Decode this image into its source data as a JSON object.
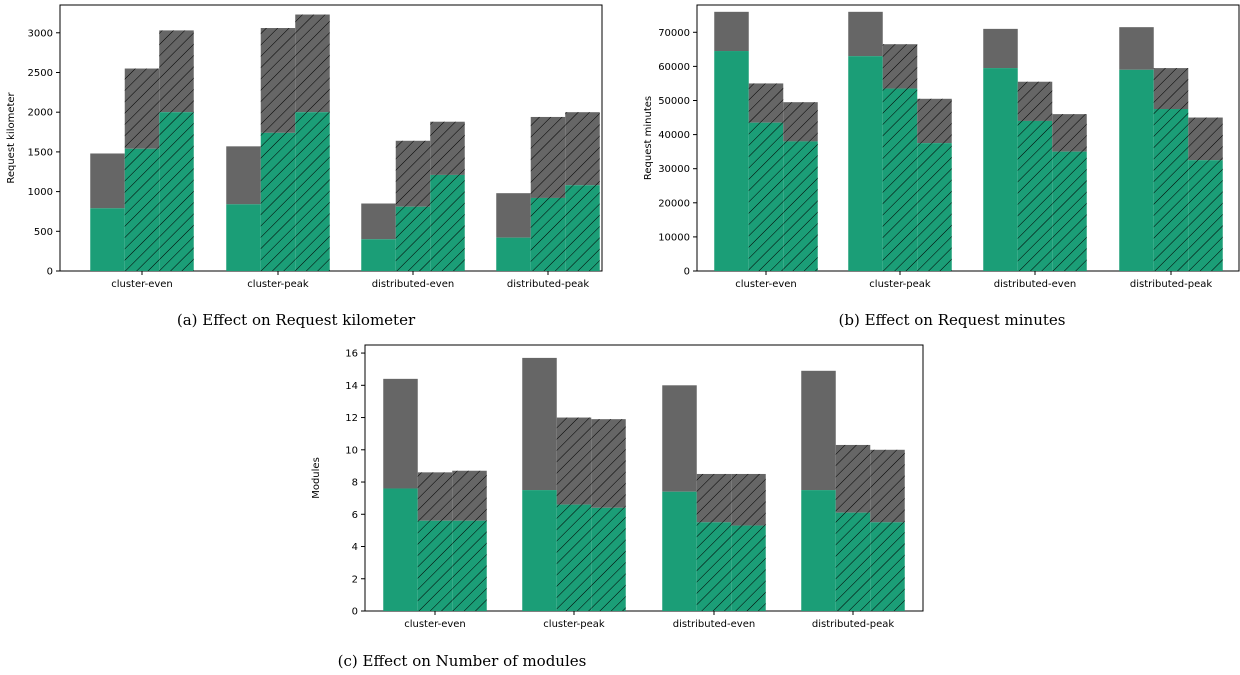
{
  "colors": {
    "green": "#1b9e77",
    "gray": "#666666",
    "axis": "#000000"
  },
  "chart_data": [
    {
      "type": "bar",
      "stacked": true,
      "caption": "(a) Effect on Request kilometer",
      "ylabel": "Request kilometer",
      "ylim": [
        0,
        3350
      ],
      "yticks": [
        0,
        500,
        1000,
        1500,
        2000,
        2500,
        3000
      ],
      "categories": [
        "cluster-even",
        "cluster-peak",
        "distributed-even",
        "distributed-peak"
      ],
      "bars_per_category": 3,
      "hatch": [
        "none",
        "diagonal",
        "diagonal"
      ],
      "series": [
        {
          "values": [
            [
              790,
              1540,
              2000
            ],
            [
              840,
              1740,
              2000
            ],
            [
              400,
              810,
              1210
            ],
            [
              420,
              920,
              1080
            ]
          ]
        },
        {
          "values": [
            [
              1480,
              2550,
              3030
            ],
            [
              1570,
              3060,
              3230
            ],
            [
              850,
              1640,
              1880
            ],
            [
              980,
              1940,
              2000
            ]
          ]
        }
      ]
    },
    {
      "type": "bar",
      "stacked": true,
      "caption": "(b) Effect on Request minutes",
      "ylabel": "Request minutes",
      "ylim": [
        0,
        78000
      ],
      "yticks": [
        0,
        10000,
        20000,
        30000,
        40000,
        50000,
        60000,
        70000
      ],
      "categories": [
        "cluster-even",
        "cluster-peak",
        "distributed-even",
        "distributed-peak"
      ],
      "bars_per_category": 3,
      "hatch": [
        "none",
        "diagonal",
        "diagonal"
      ],
      "series": [
        {
          "values": [
            [
              64500,
              43500,
              38000
            ],
            [
              63000,
              53500,
              37500
            ],
            [
              59500,
              44000,
              35000
            ],
            [
              59000,
              47500,
              32500
            ]
          ]
        },
        {
          "values": [
            [
              76000,
              55000,
              49500
            ],
            [
              76000,
              66500,
              50500
            ],
            [
              71000,
              55500,
              46000
            ],
            [
              71500,
              59500,
              45000
            ]
          ]
        }
      ]
    },
    {
      "type": "bar",
      "stacked": true,
      "caption": "(c) Effect on Number of modules",
      "ylabel": "Modules",
      "ylim": [
        0,
        16.5
      ],
      "yticks": [
        0,
        2,
        4,
        6,
        8,
        10,
        12,
        14,
        16
      ],
      "categories": [
        "cluster-even",
        "cluster-peak",
        "distributed-even",
        "distributed-peak"
      ],
      "bars_per_category": 3,
      "hatch": [
        "none",
        "diagonal",
        "diagonal"
      ],
      "series": [
        {
          "values": [
            [
              7.6,
              5.6,
              5.6
            ],
            [
              7.5,
              6.6,
              6.4
            ],
            [
              7.4,
              5.5,
              5.3
            ],
            [
              7.5,
              6.1,
              5.5
            ]
          ]
        },
        {
          "values": [
            [
              14.4,
              8.6,
              8.7
            ],
            [
              15.7,
              12.0,
              11.9
            ],
            [
              14.0,
              8.5,
              8.5
            ],
            [
              14.9,
              10.3,
              10.0
            ]
          ]
        }
      ]
    }
  ]
}
